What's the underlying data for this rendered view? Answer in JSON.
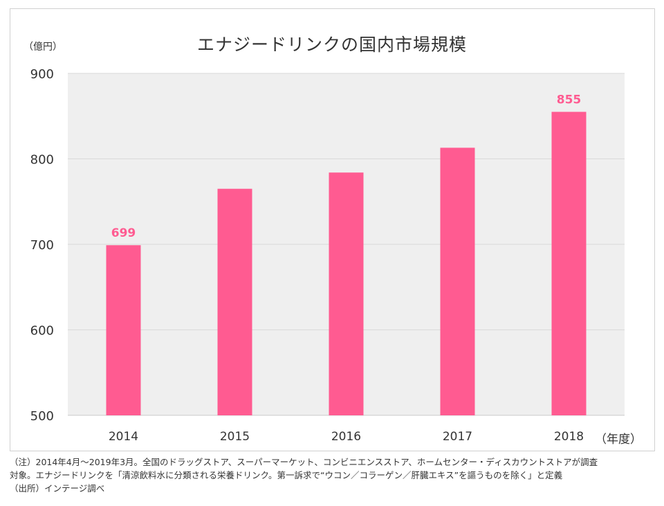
{
  "chart_data": {
    "type": "bar",
    "title": "エナジードリンクの国内市場規模",
    "y_unit_label": "（億円）",
    "x_unit_label": "（年度）",
    "categories": [
      "2014",
      "2015",
      "2016",
      "2017",
      "2018"
    ],
    "values": [
      699,
      765,
      784,
      813,
      855
    ],
    "data_labels": [
      "699",
      "",
      "",
      "",
      "855"
    ],
    "ylim": [
      500,
      900
    ],
    "yticks": [
      500,
      600,
      700,
      800,
      900
    ],
    "grid": true,
    "colors": {
      "bar": "#ff5b91",
      "label": "#ff5b91",
      "plot_bg": "#efefef",
      "grid": "#d9d9d9"
    }
  },
  "notes": [
    "（注）2014年4月～2019年3月。全国のドラッグストア、スーパーマーケット、コンビニエンスストア、ホームセンター・ディスカウントストアが調査",
    "対象。エナジードリンクを「清涼飲料水に分類される栄養ドリンク。第一訴求で“ウコン／コラーゲン／肝臓エキス”を謳うものを除く」と定義",
    "（出所）インテージ調べ"
  ]
}
